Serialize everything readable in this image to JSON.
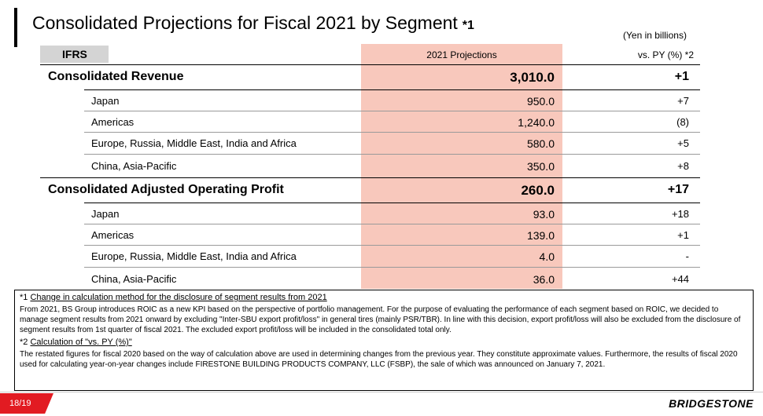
{
  "title": {
    "text": "Consolidated Projections for Fiscal 2021 by Segment",
    "note": "*1"
  },
  "unit": "(Yen in billions)",
  "table": {
    "standard": "IFRS",
    "col_projection": "2021 Projections",
    "col_vs": "vs. PY (%) *2",
    "rows": [
      {
        "label": "Consolidated Revenue",
        "value": "3,010.0",
        "vs": "+1",
        "level": "main"
      },
      {
        "label": "Japan",
        "value": "950.0",
        "vs": "+7",
        "level": "sub"
      },
      {
        "label": "Americas",
        "value": "1,240.0",
        "vs": "(8)",
        "level": "sub"
      },
      {
        "label": "Europe, Russia, Middle East, India and Africa",
        "value": "580.0",
        "vs": "+5",
        "level": "sub"
      },
      {
        "label": "China, Asia-Pacific",
        "value": "350.0",
        "vs": "+8",
        "level": "sub"
      },
      {
        "label": "Consolidated Adjusted Operating Profit",
        "value": "260.0",
        "vs": "+17",
        "level": "main"
      },
      {
        "label": "Japan",
        "value": "93.0",
        "vs": "+18",
        "level": "sub"
      },
      {
        "label": "Americas",
        "value": "139.0",
        "vs": "+1",
        "level": "sub"
      },
      {
        "label": "Europe, Russia, Middle East, India and Africa",
        "value": "4.0",
        "vs": "-",
        "level": "sub"
      },
      {
        "label": "China, Asia-Pacific",
        "value": "36.0",
        "vs": "+44",
        "level": "sub"
      }
    ]
  },
  "notes": {
    "note1_marker": "*1",
    "note1_heading": "Change in calculation method for the disclosure of segment results from 2021",
    "note1_body": "From 2021, BS Group introduces ROIC as a new KPI based on the perspective of portfolio management. For the purpose of evaluating the performance of each segment based on ROIC, we decided to manage segment results from 2021 onward by excluding \"Inter-SBU export profit/loss\" in general tires (mainly PSR/TBR). In line with this decision, export profit/loss will also be excluded from the disclosure of segment results from 1st quarter of fiscal 2021. The excluded export profit/loss will be included in the consolidated total only.",
    "note2_marker": "*2",
    "note2_heading": "Calculation of \"vs. PY (%)\"",
    "note2_body": "The restated figures for fiscal 2020 based on the way of calculation above are used in determining changes from the previous year. They constitute approximate values. Furthermore, the results of fiscal 2020 used for calculating year-on-year changes include FIRESTONE BUILDING PRODUCTS COMPANY, LLC (FSBP), the sale of which was announced on January 7, 2021."
  },
  "footer": {
    "page": "18/19",
    "logo": "BRIDGESTONE"
  },
  "colors": {
    "projection_highlight": "#f8c8bc",
    "accent_red": "#e21b22"
  }
}
